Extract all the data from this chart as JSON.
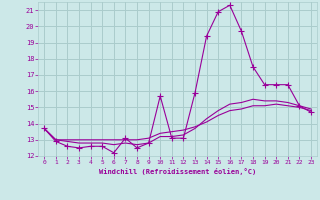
{
  "xlabel": "Windchill (Refroidissement éolien,°C)",
  "bg_color": "#cce8e8",
  "grid_color": "#aacccc",
  "line_color": "#990099",
  "xlim": [
    -0.5,
    23.5
  ],
  "ylim": [
    12,
    21.5
  ],
  "xticks": [
    0,
    1,
    2,
    3,
    4,
    5,
    6,
    7,
    8,
    9,
    10,
    11,
    12,
    13,
    14,
    15,
    16,
    17,
    18,
    19,
    20,
    21,
    22,
    23
  ],
  "yticks": [
    12,
    13,
    14,
    15,
    16,
    17,
    18,
    19,
    20,
    21
  ],
  "series1_x": [
    0,
    1,
    2,
    3,
    4,
    5,
    6,
    7,
    8,
    9,
    10,
    11,
    12,
    13,
    14,
    15,
    16,
    17,
    18,
    19,
    20,
    21,
    22,
    23
  ],
  "series1_y": [
    13.7,
    12.9,
    12.6,
    12.5,
    12.6,
    12.6,
    12.2,
    13.1,
    12.5,
    12.8,
    15.7,
    13.1,
    13.1,
    15.9,
    19.4,
    20.9,
    21.3,
    19.7,
    17.5,
    16.4,
    16.4,
    16.4,
    15.1,
    14.7
  ],
  "series2_x": [
    0,
    1,
    2,
    3,
    4,
    5,
    6,
    7,
    8,
    9,
    10,
    11,
    12,
    13,
    14,
    15,
    16,
    17,
    18,
    19,
    20,
    21,
    22,
    23
  ],
  "series2_y": [
    13.7,
    13.0,
    13.0,
    13.0,
    13.0,
    13.0,
    13.0,
    13.0,
    13.0,
    13.1,
    13.4,
    13.5,
    13.6,
    13.8,
    14.1,
    14.5,
    14.8,
    14.9,
    15.1,
    15.1,
    15.2,
    15.1,
    15.0,
    14.8
  ],
  "series3_x": [
    0,
    1,
    2,
    3,
    4,
    5,
    6,
    7,
    8,
    9,
    10,
    11,
    12,
    13,
    14,
    15,
    16,
    17,
    18,
    19,
    20,
    21,
    22,
    23
  ],
  "series3_y": [
    13.7,
    13.0,
    12.9,
    12.8,
    12.8,
    12.8,
    12.7,
    12.8,
    12.7,
    12.8,
    13.2,
    13.2,
    13.3,
    13.7,
    14.3,
    14.8,
    15.2,
    15.3,
    15.5,
    15.4,
    15.4,
    15.3,
    15.1,
    14.9
  ]
}
